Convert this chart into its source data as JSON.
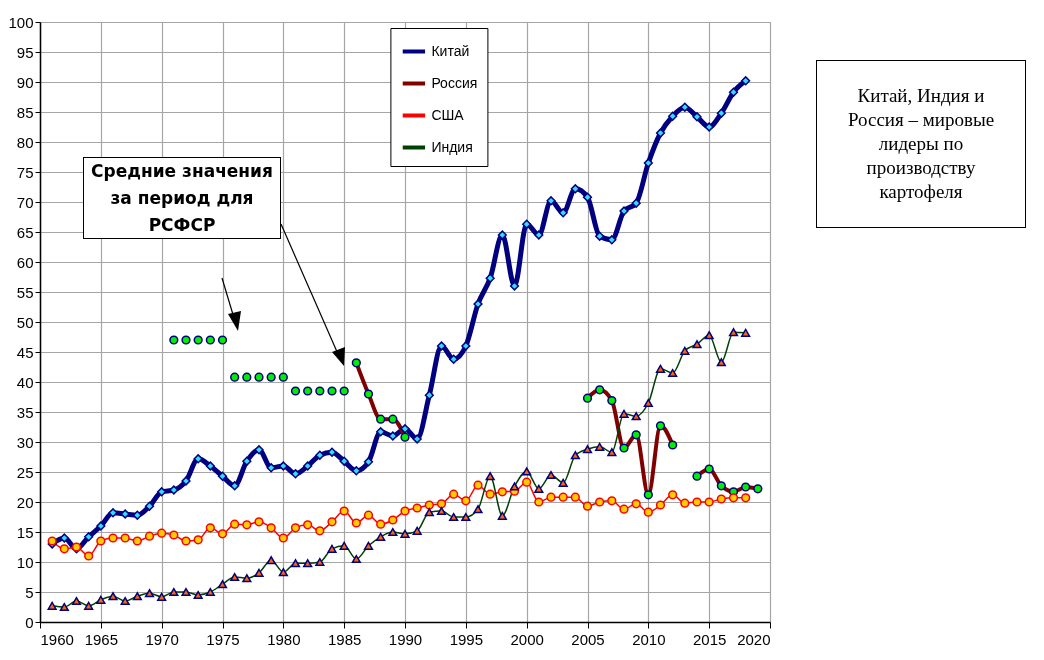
{
  "chart_data": {
    "type": "line",
    "annotations": [
      "Средние значения за период для РСФСР",
      "Китай, Индия и Россия – мировые лидеры по производству картофеля"
    ],
    "x": [
      1961,
      1962,
      1963,
      1964,
      1965,
      1966,
      1967,
      1968,
      1969,
      1970,
      1971,
      1972,
      1973,
      1974,
      1975,
      1976,
      1977,
      1978,
      1979,
      1980,
      1981,
      1982,
      1983,
      1984,
      1985,
      1986,
      1987,
      1988,
      1989,
      1990,
      1991,
      1992,
      1993,
      1994,
      1995,
      1996,
      1997,
      1998,
      1999,
      2000,
      2001,
      2002,
      2003,
      2004,
      2005,
      2006,
      2007,
      2008,
      2009,
      2010,
      2011,
      2012,
      2013,
      2014,
      2015,
      2016,
      2017,
      2018,
      2019
    ],
    "series": [
      {
        "name": "Китай",
        "color": "#000080",
        "marker": "diamond",
        "values": [
          13,
          14,
          12.2,
          14.2,
          16,
          18.2,
          18,
          17.8,
          19.3,
          21.7,
          22,
          23.5,
          27.2,
          26,
          24.3,
          22.7,
          26.8,
          28.7,
          25.7,
          26,
          24.7,
          26,
          27.8,
          28.3,
          26.8,
          25.2,
          26.7,
          31.7,
          31,
          32.2,
          30.5,
          37.8,
          46,
          43.8,
          46,
          53,
          57.3,
          64.5,
          56,
          66.3,
          64.5,
          70.2,
          68.2,
          72.2,
          70.8,
          64.3,
          63.7,
          68.5,
          69.8,
          76.5,
          81.5,
          84.3,
          85.8,
          84.2,
          82.5,
          84.8,
          88.3,
          90.2,
          null
        ]
      },
      {
        "name": "Россия",
        "color": "#800000",
        "marker": "circle",
        "values": [
          null,
          null,
          null,
          null,
          null,
          null,
          null,
          null,
          null,
          null,
          null,
          null,
          null,
          null,
          null,
          null,
          null,
          null,
          null,
          null,
          null,
          null,
          null,
          null,
          null,
          43.2,
          38,
          33.8,
          33.8,
          30.8,
          null,
          null,
          null,
          null,
          null,
          null,
          null,
          null,
          null,
          null,
          null,
          null,
          null,
          null,
          37.3,
          38.7,
          36.9,
          29,
          31.2,
          21.2,
          32.7,
          29.5,
          null,
          24.3,
          25.5,
          22.7,
          21.7,
          22.5,
          22.2
        ]
      },
      {
        "name": "США",
        "color": "#ff0000",
        "marker": "circle",
        "values": [
          13.5,
          12.2,
          12.5,
          11,
          13.5,
          14,
          14,
          13.5,
          14.3,
          14.8,
          14.5,
          13.5,
          13.7,
          15.7,
          14.7,
          16.3,
          16.2,
          16.7,
          15.7,
          14,
          15.7,
          16.2,
          15.2,
          16.7,
          18.5,
          16.5,
          17.8,
          16.3,
          17,
          18.5,
          19,
          19.5,
          19.7,
          21.3,
          20.2,
          22.8,
          21.3,
          21.7,
          21.8,
          23.3,
          20,
          20.8,
          20.8,
          20.8,
          19.3,
          20,
          20.2,
          18.8,
          19.7,
          18.3,
          19.5,
          21.2,
          19.8,
          20,
          20,
          20.5,
          20.7,
          20.7,
          null
        ]
      },
      {
        "name": "Индия",
        "color": "#004000",
        "marker": "triangle",
        "values": [
          2.7,
          2.5,
          3.5,
          2.7,
          3.7,
          4.3,
          3.5,
          4.3,
          4.8,
          4.2,
          5,
          5,
          4.5,
          5,
          6.3,
          7.5,
          7.3,
          8.2,
          10.3,
          8.3,
          9.8,
          9.8,
          10,
          12.2,
          12.7,
          10.5,
          12.7,
          14.2,
          15,
          14.7,
          15.2,
          18.3,
          18.5,
          17.5,
          17.5,
          18.8,
          24.3,
          17.7,
          22.6,
          25.1,
          22.2,
          24.5,
          23.2,
          27.8,
          28.8,
          29.2,
          28.3,
          34.7,
          34.3,
          36.5,
          42.2,
          41.5,
          45.2,
          46.3,
          47.8,
          43.3,
          48.3,
          48.2,
          null
        ]
      },
      {
        "type": "scatter",
        "color": "#00ee00",
        "marker": "circle",
        "values": [
          null,
          null,
          null,
          null,
          null,
          null,
          null,
          null,
          null,
          null,
          47,
          47,
          47,
          47,
          47,
          40.8,
          40.8,
          40.8,
          40.8,
          40.8,
          38.5,
          38.5,
          38.5,
          38.5,
          38.5,
          null,
          null,
          null,
          null,
          null,
          null,
          null,
          null,
          null,
          null,
          null,
          null,
          null,
          null,
          null,
          null,
          null,
          null,
          null,
          null,
          null,
          null,
          null,
          null,
          null,
          null,
          null,
          null,
          null,
          null,
          null,
          null,
          null,
          null
        ]
      }
    ],
    "xlim": [
      1960,
      2020
    ],
    "xticks": [
      1960,
      1965,
      1970,
      1975,
      1980,
      1985,
      1990,
      1995,
      2000,
      2005,
      2010,
      2015,
      2020
    ],
    "ylim": [
      0,
      100
    ],
    "yticks": [
      0,
      5,
      10,
      15,
      20,
      25,
      30,
      35,
      40,
      45,
      50,
      55,
      60,
      65,
      70,
      75,
      80,
      85,
      90,
      95,
      100
    ],
    "grid": true,
    "legend": "top"
  }
}
